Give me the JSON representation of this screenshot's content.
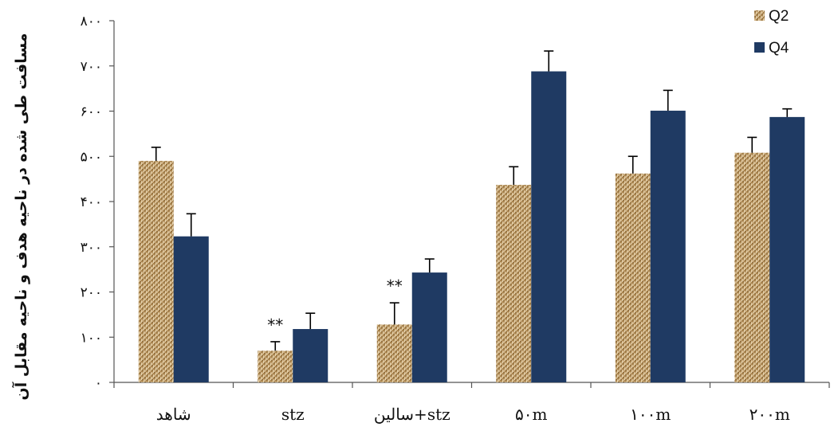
{
  "chart_data": {
    "type": "bar",
    "title": "",
    "xlabel": "",
    "ylabel": "مسافت طی شده در ناحیه هدف و ناحیه مقابل آن",
    "ylim": [
      0,
      800
    ],
    "yticks": [
      0,
      100,
      200,
      300,
      400,
      500,
      600,
      700,
      800
    ],
    "ytick_labels": [
      "۰",
      "۱۰۰",
      "۲۰۰",
      "۳۰۰",
      "۴۰۰",
      "۵۰۰",
      "۶۰۰",
      "۷۰۰",
      "۸۰۰"
    ],
    "categories": [
      "شاهد",
      "stz",
      "stz+سالین",
      "۵۰m",
      "۱۰۰m",
      "۲۰۰m"
    ],
    "series": [
      {
        "name": "Q2",
        "color": "#c8a97a",
        "pattern": "burlap",
        "values": [
          490,
          70,
          128,
          437,
          462,
          508
        ],
        "errors": [
          30,
          20,
          48,
          40,
          38,
          34
        ]
      },
      {
        "name": "Q4",
        "color": "#1f3a63",
        "values": [
          323,
          118,
          243,
          688,
          601,
          587
        ],
        "errors": [
          50,
          35,
          30,
          45,
          45,
          18
        ]
      }
    ],
    "annotations": [
      {
        "category_index": 1,
        "text": "**"
      },
      {
        "category_index": 2,
        "text": "**"
      }
    ],
    "legend": {
      "position": "top-right"
    },
    "grid": false
  }
}
